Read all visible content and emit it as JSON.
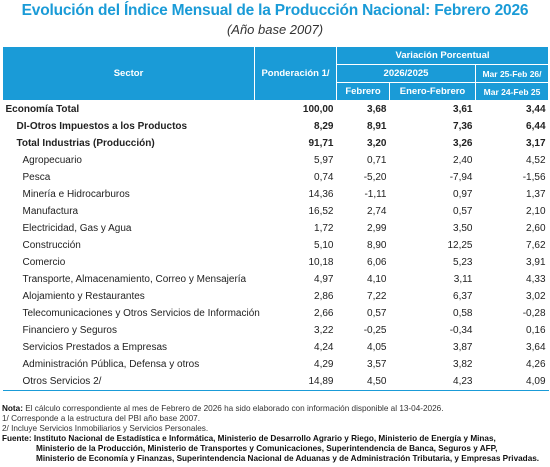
{
  "title": "Evolución del Índice Mensual de la Producción Nacional: Febrero 2026",
  "subtitle": "(Año base 2007)",
  "headers": {
    "sector": "Sector",
    "ponderacion": "Ponderación 1/",
    "variacion": "Variación Porcentual",
    "periodo": "2026/2025",
    "febrero": "Febrero",
    "enero_febrero": "Enero-Febrero",
    "anual_top": "Mar 25-Feb 26/",
    "anual_bottom": "Mar 24-Feb 25"
  },
  "rows": [
    {
      "label": "Economía Total",
      "ponderacion": "100,00",
      "febrero": "3,68",
      "enero_febrero": "3,61",
      "anual": "3,44"
    },
    {
      "label": "DI-Otros Impuestos a los Productos",
      "ponderacion": "8,29",
      "febrero": "8,91",
      "enero_febrero": "7,36",
      "anual": "6,44"
    },
    {
      "label": "Total Industrias (Producción)",
      "ponderacion": "91,71",
      "febrero": "3,20",
      "enero_febrero": "3,26",
      "anual": "3,17"
    },
    {
      "label": "Agropecuario",
      "ponderacion": "5,97",
      "febrero": "0,71",
      "enero_febrero": "2,40",
      "anual": "4,52"
    },
    {
      "label": "Pesca",
      "ponderacion": "0,74",
      "febrero": "-5,20",
      "enero_febrero": "-7,94",
      "anual": "-1,56"
    },
    {
      "label": "Minería e Hidrocarburos",
      "ponderacion": "14,36",
      "febrero": "-1,11",
      "enero_febrero": "0,97",
      "anual": "1,37"
    },
    {
      "label": "Manufactura",
      "ponderacion": "16,52",
      "febrero": "2,74",
      "enero_febrero": "0,57",
      "anual": "2,10"
    },
    {
      "label": "Electricidad, Gas y Agua",
      "ponderacion": "1,72",
      "febrero": "2,99",
      "enero_febrero": "3,50",
      "anual": "2,60"
    },
    {
      "label": "Construcción",
      "ponderacion": "5,10",
      "febrero": "8,90",
      "enero_febrero": "12,25",
      "anual": "7,62"
    },
    {
      "label": "Comercio",
      "ponderacion": "10,18",
      "febrero": "6,06",
      "enero_febrero": "5,23",
      "anual": "3,91"
    },
    {
      "label": "Transporte, Almacenamiento, Correo y Mensajería",
      "ponderacion": "4,97",
      "febrero": "4,10",
      "enero_febrero": "3,11",
      "anual": "4,33"
    },
    {
      "label": "Alojamiento y Restaurantes",
      "ponderacion": "2,86",
      "febrero": "7,22",
      "enero_febrero": "6,37",
      "anual": "3,02"
    },
    {
      "label": "Telecomunicaciones y Otros Servicios de Información",
      "ponderacion": "2,66",
      "febrero": "0,57",
      "enero_febrero": "0,58",
      "anual": "-0,28"
    },
    {
      "label": "Financiero y Seguros",
      "ponderacion": "3,22",
      "febrero": "-0,25",
      "enero_febrero": "-0,34",
      "anual": "0,16"
    },
    {
      "label": "Servicios Prestados a Empresas",
      "ponderacion": "4,24",
      "febrero": "4,05",
      "enero_febrero": "3,87",
      "anual": "3,64"
    },
    {
      "label": "Administración Pública, Defensa y otros",
      "ponderacion": "4,29",
      "febrero": "3,57",
      "enero_febrero": "3,82",
      "anual": "4,26"
    },
    {
      "label": "Otros Servicios 2/",
      "ponderacion": "14,89",
      "febrero": "4,50",
      "enero_febrero": "4,23",
      "anual": "4,09"
    }
  ],
  "notes": {
    "nota_label": "Nota:",
    "nota_text": "El cálculo correspondiente al mes de Febrero de 2026 ha sido elaborado con información disponible al 13-04-2026.",
    "note1": "1/ Corresponde a la estructura del PBI año base 2007.",
    "note2": "2/ Incluye Servicios Inmobiliarios y Servicios Personales.",
    "fuente_label": "Fuente:",
    "fuente_line1": "Instituto Nacional de Estadística e Informática, Ministerio de Desarrollo Agrario y Riego, Ministerio de Energía y Minas,",
    "fuente_line2": "Ministerio de la Producción, Ministerio de Transportes y Comunicaciones, Superintendencia de Banca, Seguros y AFP,",
    "fuente_line3": "Ministerio de Economía y Finanzas, Superintendencia Nacional de Aduanas y de Administración Tributaria, y Empresas Privadas."
  }
}
